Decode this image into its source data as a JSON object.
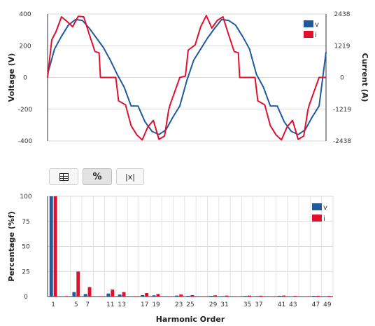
{
  "colors": {
    "voltage": "#1f5a9e",
    "current": "#e0102f"
  },
  "toolbar": {
    "table_icon": "table-icon",
    "percent_label": "%",
    "abs_label": "|x|",
    "active": "percent"
  },
  "chart_data": [
    {
      "type": "line",
      "title": "",
      "ylabel": "Voltage (V)",
      "y2label": "Current (A)",
      "ylim": [
        -400,
        400
      ],
      "y2lim": [
        -2438,
        2438
      ],
      "yticks": [
        "400",
        "200",
        "0",
        "-200",
        "-400"
      ],
      "y2ticks": [
        "2438",
        "1219",
        "0",
        "-1219",
        "-2438"
      ],
      "xlim": [
        0,
        2
      ],
      "grid": true,
      "legend": "top-right",
      "series": [
        {
          "name": "v",
          "axis": "left",
          "x": [
            0,
            0.05,
            0.1,
            0.15,
            0.2,
            0.25,
            0.3,
            0.35,
            0.4,
            0.45,
            0.5,
            0.55,
            0.6,
            0.65,
            0.7,
            0.75,
            0.8,
            0.85,
            0.9,
            0.95,
            1,
            1.05,
            1.1,
            1.15,
            1.2,
            1.25,
            1.3,
            1.35,
            1.4,
            1.45,
            1.5,
            1.55,
            1.6,
            1.65,
            1.7,
            1.75,
            1.8,
            1.85,
            1.9,
            1.95,
            2
          ],
          "values": [
            20,
            180,
            260,
            330,
            365,
            360,
            310,
            250,
            190,
            110,
            20,
            -60,
            -180,
            -180,
            -280,
            -340,
            -360,
            -330,
            -250,
            -180,
            -20,
            110,
            180,
            250,
            310,
            365,
            360,
            330,
            260,
            180,
            20,
            -60,
            -180,
            -180,
            -280,
            -340,
            -360,
            -330,
            -250,
            -180,
            160
          ]
        },
        {
          "name": "i",
          "axis": "right",
          "x": [
            0,
            0.03,
            0.06,
            0.1,
            0.14,
            0.18,
            0.22,
            0.26,
            0.3,
            0.34,
            0.37,
            0.38,
            0.45,
            0.49,
            0.51,
            0.56,
            0.6,
            0.64,
            0.68,
            0.72,
            0.76,
            0.8,
            0.84,
            0.87,
            0.88,
            0.95,
            0.99,
            1.01,
            1.06,
            1.1,
            1.14,
            1.18,
            1.22,
            1.26,
            1.3,
            1.34,
            1.37,
            1.38,
            1.45,
            1.49,
            1.51,
            1.56,
            1.6,
            1.64,
            1.68,
            1.72,
            1.76,
            1.8,
            1.84,
            1.87,
            1.88,
            1.95,
            2
          ],
          "values": [
            0,
            1450,
            1750,
            2330,
            2150,
            1950,
            2350,
            2330,
            1650,
            1000,
            950,
            0,
            0,
            0,
            -900,
            -1050,
            -1850,
            -2200,
            -2400,
            -1900,
            -1650,
            -2380,
            -2250,
            -1250,
            -1050,
            0,
            50,
            1050,
            1250,
            1950,
            2380,
            1900,
            2200,
            2330,
            1650,
            1000,
            950,
            0,
            0,
            0,
            -900,
            -1050,
            -1850,
            -2200,
            -2400,
            -1900,
            -1650,
            -2380,
            -2250,
            -1250,
            -1050,
            0,
            0
          ]
        }
      ]
    },
    {
      "type": "bar",
      "title": "",
      "xlabel": "Harmonic Order",
      "ylabel": "Percentage (%f)",
      "ylim": [
        0,
        100
      ],
      "yticks": [
        "100",
        "75",
        "50",
        "25",
        "0"
      ],
      "xticks": [
        "1",
        "5",
        "7",
        "11",
        "13",
        "17",
        "19",
        "23",
        "25",
        "29",
        "31",
        "35",
        "37",
        "41",
        "43",
        "47",
        "49"
      ],
      "grid": true,
      "legend": "top-right",
      "categories": [
        1,
        3,
        5,
        7,
        9,
        11,
        13,
        15,
        17,
        19,
        21,
        23,
        25,
        27,
        29,
        31,
        33,
        35,
        37,
        39,
        41,
        43,
        45,
        47,
        49
      ],
      "series": [
        {
          "name": "v",
          "values": [
            100,
            0.3,
            4.5,
            2.5,
            0.2,
            3,
            2,
            0.2,
            1.5,
            1.2,
            0.2,
            1,
            0.8,
            0.2,
            0.7,
            0.5,
            0.2,
            0.6,
            0.5,
            0.2,
            0.8,
            0.3,
            0.2,
            0.7,
            0.4
          ]
        },
        {
          "name": "i",
          "values": [
            100,
            0.5,
            25,
            9.5,
            0.4,
            7,
            4.5,
            0.4,
            3.5,
            2.5,
            0.3,
            2,
            1.5,
            0.3,
            1.2,
            1,
            0.3,
            1,
            0.8,
            0.3,
            1,
            0.6,
            0.3,
            0.8,
            0.6
          ]
        }
      ]
    }
  ]
}
